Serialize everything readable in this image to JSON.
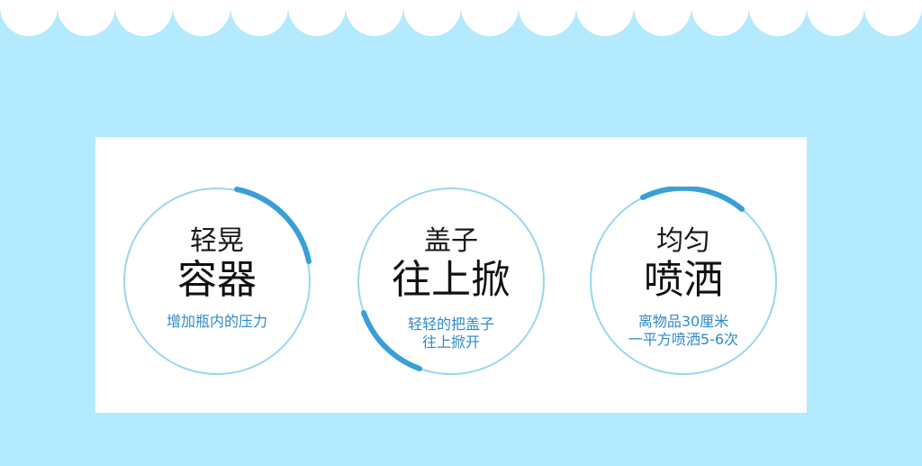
{
  "colors": {
    "background": "#b3eafe",
    "card": "#ffffff",
    "ring": "#9ad7ef",
    "accent_arc": "#3a9fd6",
    "description_text": "#2d8ac6",
    "title_text": "#111111"
  },
  "steps": [
    {
      "small_title": "轻晃",
      "big_title": "容器",
      "desc_line1": "增加瓶内的压力",
      "desc_line2": ""
    },
    {
      "small_title": "盖子",
      "big_title": "往上掀",
      "desc_line1": "轻轻的把盖子",
      "desc_line2": "往上掀开"
    },
    {
      "small_title": "均匀",
      "big_title": "喷洒",
      "desc_line1": "离物品30厘米",
      "desc_line2": "一平方喷洒5-6次"
    }
  ]
}
